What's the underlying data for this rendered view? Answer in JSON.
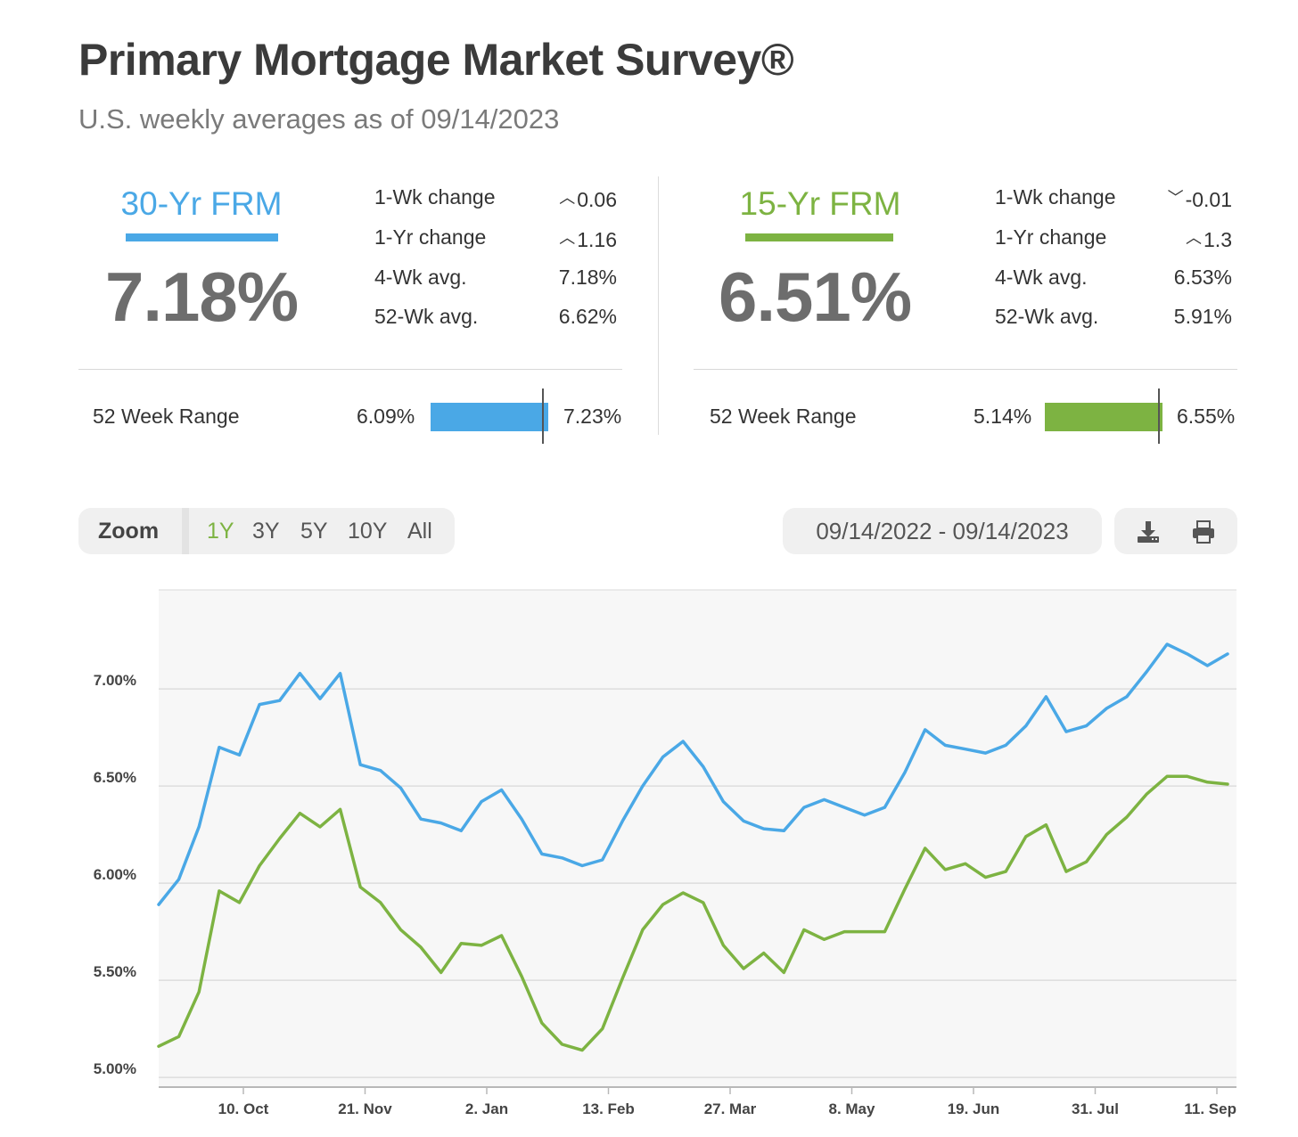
{
  "header": {
    "title": "Primary Mortgage Market Survey®",
    "subtitle": "U.S. weekly averages as of 09/14/2023"
  },
  "rates": [
    {
      "name": "30-Yr FRM",
      "color": "#4aa8e6",
      "rate": "7.18%",
      "stats": [
        {
          "label": "1-Wk change",
          "value": "0.06",
          "arrow": "up"
        },
        {
          "label": "1-Yr change",
          "value": "1.16",
          "arrow": "up"
        },
        {
          "label": "4-Wk avg.",
          "value": "7.18%",
          "arrow": ""
        },
        {
          "label": "52-Wk avg.",
          "value": "6.62%",
          "arrow": ""
        }
      ],
      "range_label": "52 Week Range",
      "range_min": "6.09%",
      "range_max": "7.23%",
      "range_current": 7.18
    },
    {
      "name": "15-Yr FRM",
      "color": "#7db342",
      "rate": "6.51%",
      "stats": [
        {
          "label": "1-Wk change",
          "value": "-0.01",
          "arrow": "down"
        },
        {
          "label": "1-Yr change",
          "value": "1.3",
          "arrow": "up"
        },
        {
          "label": "4-Wk avg.",
          "value": "6.53%",
          "arrow": ""
        },
        {
          "label": "52-Wk avg.",
          "value": "5.91%",
          "arrow": ""
        }
      ],
      "range_label": "52 Week Range",
      "range_min": "5.14%",
      "range_max": "6.55%",
      "range_current": 6.51
    }
  ],
  "toolbar": {
    "zoom_label": "Zoom",
    "zoom_options": [
      "1Y",
      "3Y",
      "5Y",
      "10Y",
      "All"
    ],
    "zoom_selected": "1Y",
    "zoom_selected_color": "#7db342",
    "date_range": "09/14/2022 - 09/14/2023",
    "download_icon": "download-icon",
    "print_icon": "print-icon"
  },
  "chart_data": {
    "type": "line",
    "x_ticks": [
      "10. Oct",
      "21. Nov",
      "2. Jan",
      "13. Feb",
      "27. Mar",
      "8. May",
      "19. Jun",
      "31. Jul",
      "11. Sep"
    ],
    "y_ticks": [
      "5.00%",
      "5.50%",
      "6.00%",
      "6.50%",
      "7.00%"
    ],
    "ylim": [
      4.95,
      7.51
    ],
    "grid": true,
    "legend": "none",
    "series": [
      {
        "color": "#4aa8e6",
        "values": [
          5.89,
          6.02,
          6.29,
          6.7,
          6.66,
          6.92,
          6.94,
          7.08,
          6.95,
          7.08,
          6.61,
          6.58,
          6.49,
          6.33,
          6.31,
          6.27,
          6.42,
          6.48,
          6.33,
          6.15,
          6.13,
          6.09,
          6.12,
          6.32,
          6.5,
          6.65,
          6.73,
          6.6,
          6.42,
          6.32,
          6.28,
          6.27,
          6.39,
          6.43,
          6.39,
          6.35,
          6.39,
          6.57,
          6.79,
          6.71,
          6.69,
          6.67,
          6.71,
          6.81,
          6.96,
          6.78,
          6.81,
          6.9,
          6.96,
          7.09,
          7.23,
          7.18,
          7.12,
          7.18
        ]
      },
      {
        "color": "#7db342",
        "values": [
          5.16,
          5.21,
          5.44,
          5.96,
          5.9,
          6.09,
          6.23,
          6.36,
          6.29,
          6.38,
          5.98,
          5.9,
          5.76,
          5.67,
          5.54,
          5.69,
          5.68,
          5.73,
          5.52,
          5.28,
          5.17,
          5.14,
          5.25,
          5.51,
          5.76,
          5.89,
          5.95,
          5.9,
          5.68,
          5.56,
          5.64,
          5.54,
          5.76,
          5.71,
          5.75,
          5.75,
          5.75,
          5.97,
          6.18,
          6.07,
          6.1,
          6.03,
          6.06,
          6.24,
          6.3,
          6.06,
          6.11,
          6.25,
          6.34,
          6.46,
          6.55,
          6.55,
          6.52,
          6.51
        ]
      }
    ]
  }
}
